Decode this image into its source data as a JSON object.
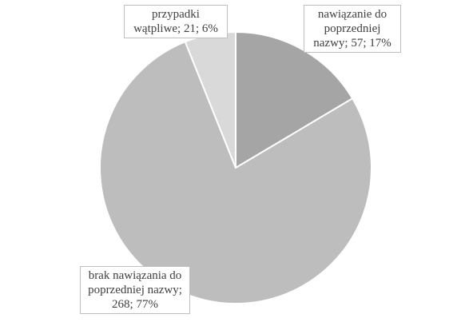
{
  "chart_data": {
    "type": "pie",
    "values": [
      57,
      268,
      21
    ],
    "value_labels": [
      "nawiązanie do poprzedniej nazwy; 57; 17%",
      "brak nawiązania do poprzedniej nazwy; 268; 77%",
      "przypadki wątpliwe; 21; 6%"
    ],
    "colors": [
      "#a5a5a5",
      "#bdbdbd",
      "#d9d9d9"
    ]
  }
}
